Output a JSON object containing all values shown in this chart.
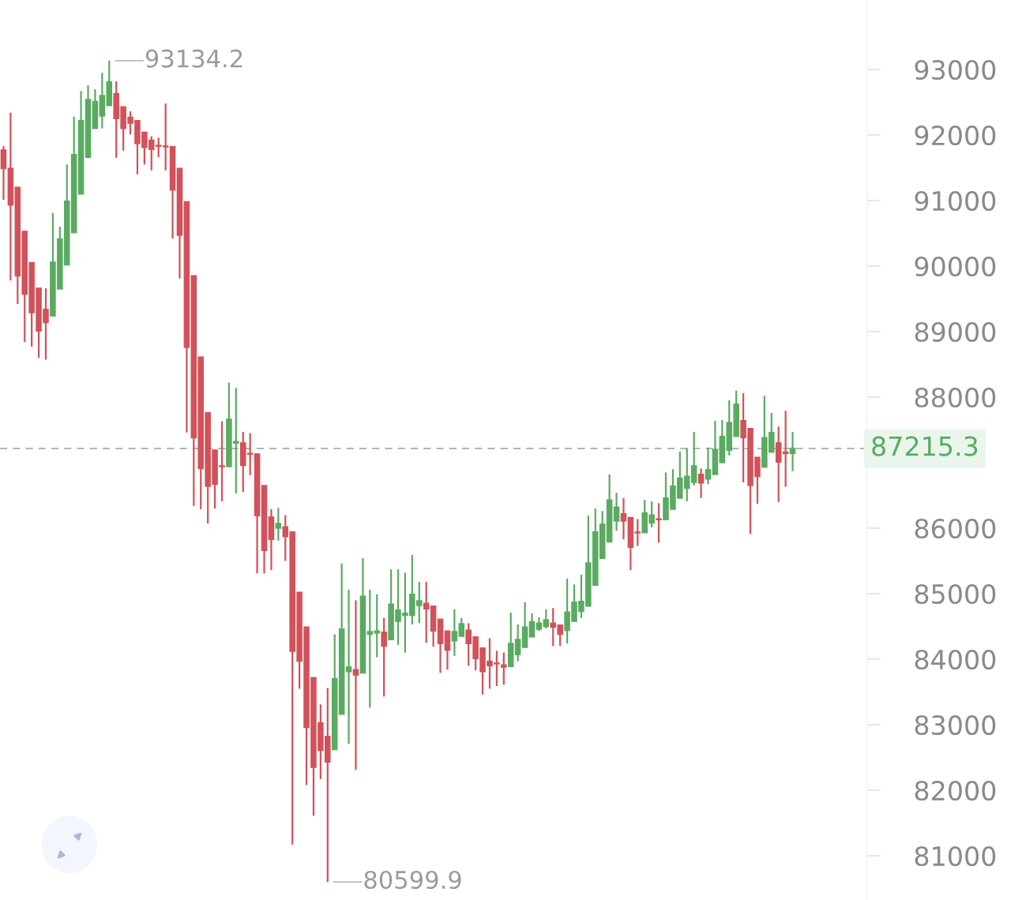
{
  "chart_data": {
    "type": "candlestick",
    "categories": [
      null,
      null,
      null,
      null,
      null,
      null,
      null,
      null,
      null,
      null,
      null,
      null,
      null,
      null,
      null,
      null,
      null,
      null,
      null,
      null,
      null,
      null,
      null,
      null,
      null,
      null,
      null,
      null,
      null,
      null,
      null,
      null,
      null,
      null,
      null,
      null,
      null,
      null,
      null,
      null,
      null,
      null,
      null,
      null,
      null,
      null,
      null,
      null,
      null,
      null,
      null,
      null,
      null,
      null,
      null,
      null,
      null,
      null,
      null,
      null,
      null,
      null,
      null,
      null,
      null,
      null,
      null,
      null,
      null,
      null,
      null,
      null,
      null,
      null,
      null,
      null,
      null,
      null,
      null,
      null,
      null,
      null,
      null,
      null,
      null,
      null,
      null,
      null,
      null,
      null,
      null,
      null,
      null,
      null,
      null,
      null,
      null,
      null,
      null,
      null,
      null,
      null,
      null,
      null,
      null,
      null,
      null,
      null,
      null,
      null,
      null,
      null,
      null
    ],
    "ohlc": [
      [
        91770,
        91830,
        91010,
        91490
      ],
      [
        91490,
        92340,
        89780,
        90930
      ],
      [
        91200,
        91200,
        89420,
        89850
      ],
      [
        90530,
        90530,
        88840,
        89570
      ],
      [
        90050,
        90050,
        88770,
        89290
      ],
      [
        89660,
        89660,
        88600,
        89010
      ],
      [
        89340,
        89660,
        88570,
        89140
      ],
      [
        89240,
        90810,
        89240,
        90060
      ],
      [
        89650,
        90600,
        89650,
        90410
      ],
      [
        90020,
        91550,
        90020,
        90990
      ],
      [
        90510,
        92280,
        90510,
        91700
      ],
      [
        91100,
        92670,
        91100,
        92220
      ],
      [
        91660,
        92760,
        91660,
        92540
      ],
      [
        92100,
        92700,
        92100,
        92510
      ],
      [
        92290,
        92950,
        92100,
        92600
      ],
      [
        92450,
        93134.2,
        92450,
        92810
      ],
      [
        92630,
        92820,
        91650,
        92250
      ],
      [
        92430,
        92430,
        91760,
        92100
      ],
      [
        92270,
        92360,
        92010,
        92180
      ],
      [
        92220,
        92220,
        91400,
        91870
      ],
      [
        92040,
        92040,
        91550,
        91810
      ],
      [
        91920,
        91980,
        91460,
        91780
      ],
      [
        91840,
        91960,
        91660,
        91830
      ],
      [
        91830,
        92480,
        91460,
        91820
      ],
      [
        91820,
        91820,
        90420,
        91160
      ],
      [
        91490,
        91490,
        89810,
        90470
      ],
      [
        90980,
        90980,
        87460,
        88760
      ],
      [
        89850,
        89850,
        86340,
        87380
      ],
      [
        88610,
        88610,
        86290,
        86910
      ],
      [
        87760,
        87760,
        86070,
        86640
      ],
      [
        87190,
        87190,
        86300,
        86670
      ],
      [
        86950,
        87630,
        86410,
        86940
      ],
      [
        86940,
        88220,
        86940,
        87660
      ],
      [
        87300,
        88140,
        86530,
        87320
      ],
      [
        87300,
        87470,
        86550,
        86960
      ],
      [
        87140,
        87450,
        86810,
        87130
      ],
      [
        87130,
        87130,
        85310,
        86190
      ],
      [
        86650,
        86650,
        85310,
        85660
      ],
      [
        86170,
        86290,
        85360,
        85830
      ],
      [
        86000,
        86310,
        85810,
        86070
      ],
      [
        86020,
        86200,
        85500,
        85870
      ],
      [
        85940,
        85940,
        81170,
        84120
      ],
      [
        85020,
        85020,
        83550,
        83970
      ],
      [
        84490,
        84490,
        82080,
        82960
      ],
      [
        83720,
        83720,
        81610,
        82350
      ],
      [
        83030,
        83310,
        82170,
        82610
      ],
      [
        82820,
        83560,
        80599.9,
        82430
      ],
      [
        82620,
        84380,
        82620,
        83700
      ],
      [
        83160,
        85460,
        83160,
        84460
      ],
      [
        83810,
        85060,
        82710,
        83880
      ],
      [
        83840,
        84900,
        82310,
        83760
      ],
      [
        83790,
        85540,
        83790,
        84960
      ],
      [
        84380,
        85060,
        83260,
        84420
      ],
      [
        84400,
        84990,
        84030,
        84430
      ],
      [
        84410,
        84630,
        83430,
        84200
      ],
      [
        84300,
        85370,
        84300,
        84840
      ],
      [
        84580,
        85370,
        84220,
        84750
      ],
      [
        84670,
        85320,
        84100,
        84700
      ],
      [
        84670,
        85590,
        84530,
        84990
      ],
      [
        84820,
        85180,
        84550,
        84890
      ],
      [
        84850,
        85180,
        84250,
        84770
      ],
      [
        84810,
        84810,
        84190,
        84430
      ],
      [
        84610,
        84610,
        83790,
        84240
      ],
      [
        84430,
        84430,
        83840,
        84140
      ],
      [
        84280,
        84760,
        84050,
        84420
      ],
      [
        84350,
        84630,
        84350,
        84540
      ],
      [
        84440,
        84550,
        83900,
        84240
      ],
      [
        84340,
        84340,
        83830,
        84010
      ],
      [
        84170,
        84170,
        83460,
        83810
      ],
      [
        83970,
        84320,
        83550,
        83900
      ],
      [
        83940,
        84130,
        83590,
        83930
      ],
      [
        83910,
        84100,
        83610,
        83880
      ],
      [
        83890,
        84710,
        83890,
        84240
      ],
      [
        84070,
        84530,
        83970,
        84300
      ],
      [
        84180,
        84870,
        84180,
        84490
      ],
      [
        84340,
        84700,
        84340,
        84570
      ],
      [
        84460,
        84640,
        84430,
        84550
      ],
      [
        84500,
        84760,
        84470,
        84600
      ],
      [
        84550,
        84780,
        84200,
        84490
      ],
      [
        84520,
        84520,
        84200,
        84380
      ],
      [
        84440,
        85230,
        84240,
        84720
      ],
      [
        84580,
        85140,
        84580,
        84870
      ],
      [
        84730,
        85290,
        84630,
        84880
      ],
      [
        84810,
        86190,
        84810,
        85470
      ],
      [
        85130,
        86300,
        85130,
        85940
      ],
      [
        85540,
        86260,
        85540,
        86060
      ],
      [
        85790,
        86820,
        85790,
        86430
      ],
      [
        86110,
        86540,
        85960,
        86320
      ],
      [
        86220,
        86460,
        85830,
        86110
      ],
      [
        86160,
        86160,
        85360,
        85710
      ],
      [
        85940,
        86140,
        85730,
        85930
      ],
      [
        85930,
        86430,
        85930,
        86230
      ],
      [
        86080,
        86410,
        86010,
        86200
      ],
      [
        86140,
        86380,
        85780,
        86130
      ],
      [
        86130,
        86850,
        86130,
        86460
      ],
      [
        86290,
        86900,
        86290,
        86640
      ],
      [
        86460,
        87170,
        86460,
        86760
      ],
      [
        86610,
        87220,
        86410,
        86790
      ],
      [
        86700,
        87470,
        86650,
        86950
      ],
      [
        86820,
        86910,
        86460,
        86690
      ],
      [
        86750,
        87230,
        86670,
        86890
      ],
      [
        86820,
        87640,
        86820,
        87200
      ],
      [
        87000,
        87650,
        87000,
        87400
      ],
      [
        87190,
        87950,
        87110,
        87610
      ],
      [
        87400,
        88100,
        87400,
        87890
      ],
      [
        87640,
        88060,
        86700,
        87380
      ],
      [
        87520,
        87520,
        85910,
        86650
      ],
      [
        87080,
        87080,
        86370,
        86790
      ],
      [
        86930,
        88020,
        86930,
        87380
      ],
      [
        87160,
        87760,
        87160,
        87460
      ],
      [
        87300,
        87550,
        86400,
        87010
      ],
      [
        87160,
        87790,
        86630,
        87140
      ],
      [
        87140,
        87470,
        86870,
        87215.3
      ]
    ],
    "colors": [
      "#d1525a",
      "#d1525a",
      "#d1525a",
      "#d1525a",
      "#d1525a",
      "#d1525a",
      "#d1525a",
      "#5aab61",
      "#5aab61",
      "#5aab61",
      "#5aab61",
      "#5aab61",
      "#5aab61",
      "#5aab61",
      "#5aab61",
      "#5aab61",
      "#d1525a",
      "#d1525a",
      "#d1525a",
      "#d1525a",
      "#d1525a",
      "#d1525a",
      "#d1525a",
      "#d1525a",
      "#d1525a",
      "#d1525a",
      "#d1525a",
      "#d1525a",
      "#d1525a",
      "#d1525a",
      "#d1525a",
      "#d1525a",
      "#5aab61",
      "#5aab61",
      "#d1525a",
      "#d1525a",
      "#d1525a",
      "#d1525a",
      "#d1525a",
      "#5aab61",
      "#d1525a",
      "#d1525a",
      "#d1525a",
      "#d1525a",
      "#d1525a",
      "#d1525a",
      "#d1525a",
      "#5aab61",
      "#5aab61",
      "#5aab61",
      "#d1525a",
      "#5aab61",
      "#5aab61",
      "#5aab61",
      "#d1525a",
      "#5aab61",
      "#5aab61",
      "#5aab61",
      "#5aab61",
      "#5aab61",
      "#d1525a",
      "#d1525a",
      "#d1525a",
      "#d1525a",
      "#5aab61",
      "#5aab61",
      "#d1525a",
      "#d1525a",
      "#d1525a",
      "#d1525a",
      "#d1525a",
      "#d1525a",
      "#5aab61",
      "#5aab61",
      "#5aab61",
      "#5aab61",
      "#5aab61",
      "#5aab61",
      "#d1525a",
      "#d1525a",
      "#5aab61",
      "#5aab61",
      "#5aab61",
      "#5aab61",
      "#5aab61",
      "#5aab61",
      "#5aab61",
      "#5aab61",
      "#d1525a",
      "#d1525a",
      "#d1525a",
      "#5aab61",
      "#5aab61",
      "#d1525a",
      "#5aab61",
      "#5aab61",
      "#5aab61",
      "#5aab61",
      "#5aab61",
      "#d1525a",
      "#5aab61",
      "#5aab61",
      "#5aab61",
      "#5aab61",
      "#5aab61",
      "#d1525a",
      "#d1525a",
      "#d1525a",
      "#5aab61",
      "#5aab61",
      "#d1525a",
      "#d1525a",
      "#5aab61"
    ],
    "ylim": [
      80325,
      94060
    ],
    "yticks": [
      81000,
      82000,
      83000,
      84000,
      85000,
      86000,
      88000,
      89000,
      90000,
      91000,
      92000,
      93000
    ],
    "tick_labels": "y",
    "grid": false,
    "ref_lines": [
      {
        "axis": "y",
        "value": 87215.3,
        "label": "87215.3",
        "color": "#aaaaaa",
        "line_style": "dashed"
      }
    ],
    "annotations": [
      "93134.2",
      "80599.9"
    ]
  }
}
